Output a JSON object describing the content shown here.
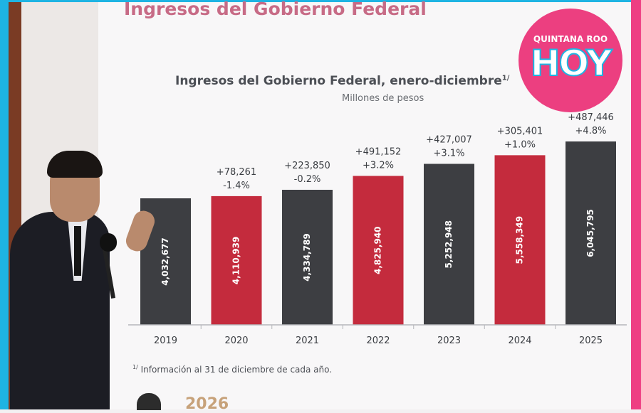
{
  "slide": {
    "heading": "Ingresos del Gobierno Federal",
    "footnote_mark": "1/",
    "footnote": "Información al 31 de diciembre de cada año.",
    "plan_text": "2026"
  },
  "logo": {
    "top_text": "QUINTANA ROO",
    "main_text": "HOY"
  },
  "colors": {
    "dark_bar": "#3d3e42",
    "red_bar": "#c42b3d",
    "frame_left": "#1eb4e3",
    "frame_right": "#ee3f83"
  },
  "chart_data": {
    "type": "bar",
    "title": "Ingresos del Gobierno Federal, enero-diciembre",
    "title_note": "1/",
    "subtitle": "Millones de pesos",
    "categories": [
      "2019",
      "2020",
      "2021",
      "2022",
      "2023",
      "2024",
      "2025"
    ],
    "values": [
      4032677,
      4110939,
      4334789,
      4825940,
      5252948,
      5558349,
      6045795
    ],
    "value_labels": [
      "4,032,677",
      "4,110,939",
      "4,334,789",
      "4,825,940",
      "5,252,948",
      "5,558,349",
      "6,045,795"
    ],
    "bar_colors": [
      "dark",
      "red",
      "dark",
      "red",
      "dark",
      "red",
      "dark"
    ],
    "change_abs": [
      "",
      "+78,261",
      "+223,850",
      "+491,152",
      "+427,007",
      "+305,401",
      "+487,446"
    ],
    "change_pct": [
      "",
      "-1.4%",
      "-0.2%",
      "+3.2%",
      "+3.1%",
      "+1.0%",
      "+4.8%"
    ],
    "ylim": [
      0,
      6045795
    ],
    "grid": false,
    "legend": "none"
  }
}
